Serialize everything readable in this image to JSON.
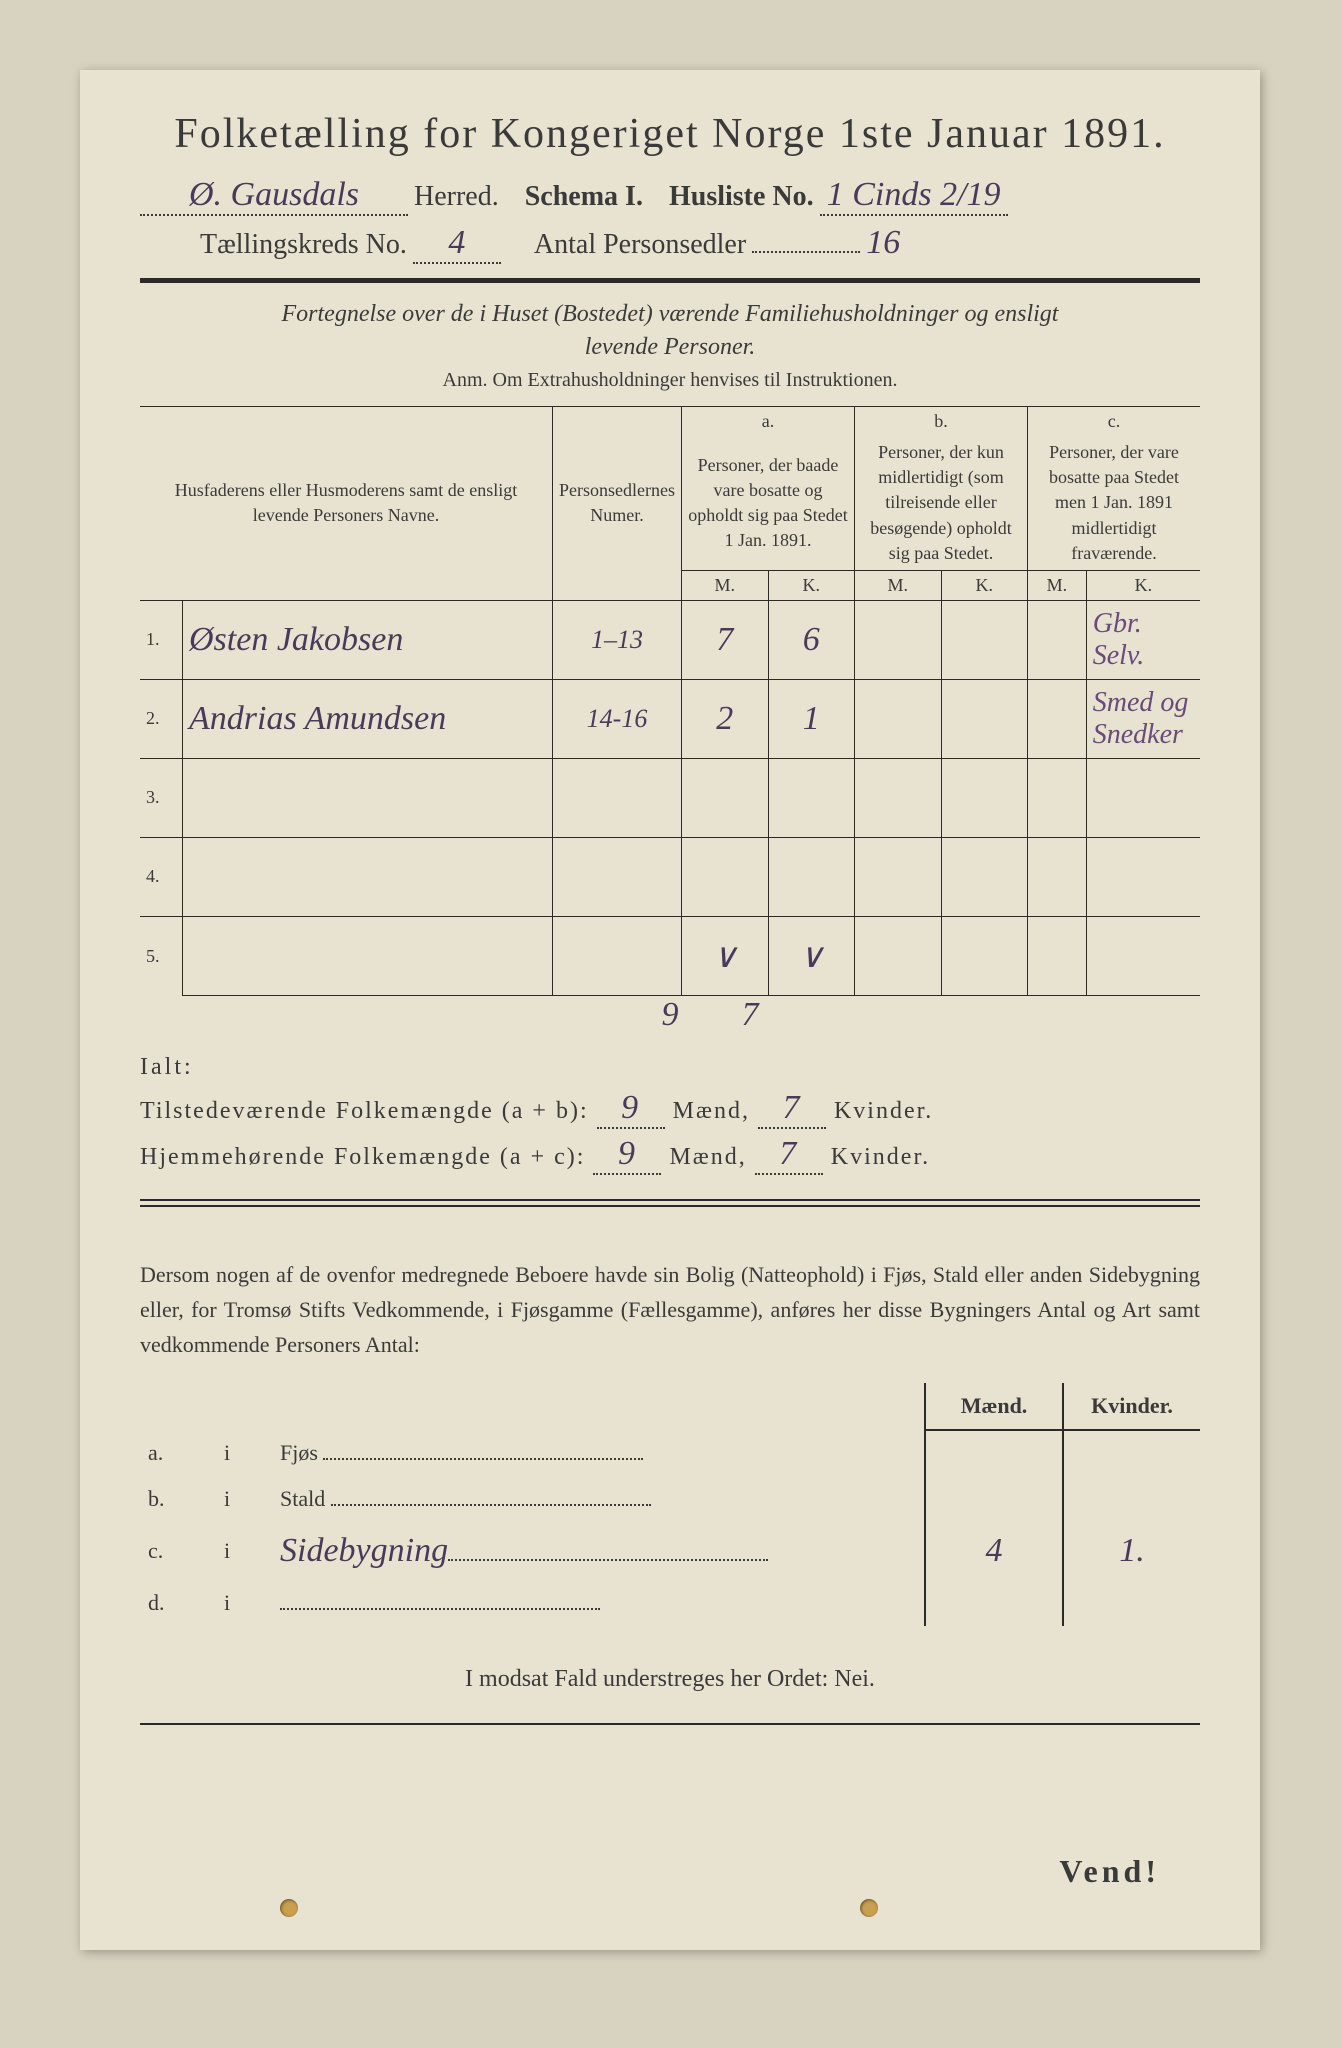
{
  "title": "Folketælling for Kongeriget Norge 1ste Januar 1891.",
  "header": {
    "herred_prefix_hw": "Ø. Gausdals",
    "herred_label": "Herred.",
    "schema_label": "Schema I.",
    "husliste_label": "Husliste No.",
    "husliste_value_hw": "1 Cinds 2/19",
    "kreds_label": "Tællingskreds No.",
    "kreds_value_hw": "4",
    "antal_label": "Antal Personsedler",
    "antal_value_hw": "16"
  },
  "subtitle_line1": "Fortegnelse over de i Huset (Bostedet) værende Familiehusholdninger og ensligt",
  "subtitle_line2": "levende Personer.",
  "anm": "Anm.  Om Extrahusholdninger henvises til Instruktionen.",
  "table": {
    "col_names": "Husfaderens eller Husmoderens samt de ensligt levende Personers Navne.",
    "col_numer": "Personsedlernes Numer.",
    "col_a_label": "a.",
    "col_a": "Personer, der baade vare bosatte og opholdt sig paa Stedet 1 Jan. 1891.",
    "col_b_label": "b.",
    "col_b": "Personer, der kun midlertidigt (som tilreisende eller besøgende) opholdt sig paa Stedet.",
    "col_c_label": "c.",
    "col_c": "Personer, der vare bosatte paa Stedet men 1 Jan. 1891 midlertidigt fraværende.",
    "m_label": "M.",
    "k_label": "K.",
    "rows": [
      {
        "n": "1.",
        "name": "Østen Jakobsen",
        "numer": "1–13",
        "aM": "7",
        "aK": "6",
        "bM": "",
        "bK": "",
        "cM": "",
        "cK": "",
        "note": "Gbr. Selv."
      },
      {
        "n": "2.",
        "name": "Andrias Amundsen",
        "numer": "14-16",
        "aM": "2",
        "aK": "1",
        "bM": "",
        "bK": "",
        "cM": "",
        "cK": "",
        "note": "Smed og Snedker"
      },
      {
        "n": "3.",
        "name": "",
        "numer": "",
        "aM": "",
        "aK": "",
        "bM": "",
        "bK": "",
        "cM": "",
        "cK": "",
        "note": ""
      },
      {
        "n": "4.",
        "name": "",
        "numer": "",
        "aM": "",
        "aK": "",
        "bM": "",
        "bK": "",
        "cM": "",
        "cK": "",
        "note": ""
      },
      {
        "n": "5.",
        "name": "",
        "numer": "",
        "aM": "∨",
        "aK": "∨",
        "bM": "",
        "bK": "",
        "cM": "",
        "cK": "",
        "note": ""
      }
    ],
    "sum_aM": "9",
    "sum_aK": "7"
  },
  "totals": {
    "ialt": "Ialt:",
    "line1_label": "Tilstedeværende Folkemængde (a + b):",
    "line1_m": "9",
    "line1_k": "7",
    "line2_label": "Hjemmehørende Folkemængde (a + c):",
    "line2_m": "9",
    "line2_k": "7",
    "maend": "Mænd,",
    "kvinder": "Kvinder."
  },
  "paragraph": "Dersom nogen af de ovenfor medregnede Beboere havde sin Bolig (Natteophold) i Fjøs, Stald eller anden Sidebygning eller, for Tromsø Stifts Vedkommende, i Fjøsgamme (Fællesgamme), anføres her disse Bygningers Antal og Art samt vedkommende Personers Antal:",
  "sub": {
    "maend": "Mænd.",
    "kvinder": "Kvinder.",
    "rows": [
      {
        "l": "a.",
        "i": "i",
        "label": "Fjøs",
        "hw": "",
        "m": "",
        "k": ""
      },
      {
        "l": "b.",
        "i": "i",
        "label": "Stald",
        "hw": "",
        "m": "",
        "k": ""
      },
      {
        "l": "c.",
        "i": "i",
        "label": "",
        "hw": "Sidebygning",
        "m": "4",
        "k": "1."
      },
      {
        "l": "d.",
        "i": "i",
        "label": "",
        "hw": "",
        "m": "",
        "k": ""
      }
    ]
  },
  "nei": "I modsat Fald understreges her Ordet: Nei.",
  "vend": "Vend!",
  "colors": {
    "bg": "#d8d3c0",
    "paper": "#e8e3d0",
    "ink": "#3a3a3a",
    "handwriting": "#4a3a5a"
  }
}
